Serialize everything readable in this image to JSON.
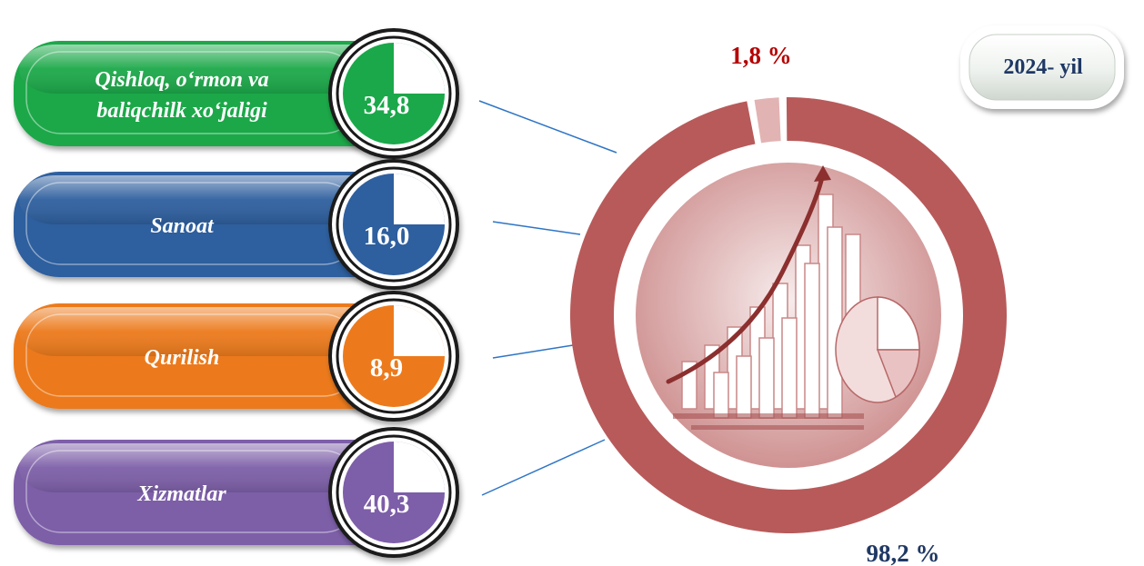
{
  "year_badge": "2024- yil",
  "colors": {
    "ring_main": "#b85a5a",
    "ring_small": "#e2b3b3",
    "small_label": "#b50000",
    "large_label": "#1f3864",
    "connector": "#2e75c6"
  },
  "chart_data": [
    {
      "type": "pie",
      "categories": [
        "Qishloq, o‘rmon va baliqchilk xo‘jaligi",
        "Sanoat",
        "Qurilish",
        "Xizmatlar"
      ],
      "values": [
        34.8,
        16.0,
        8.9,
        40.3
      ],
      "value_labels": [
        "34,8",
        "16,0",
        "8,9",
        "40,3"
      ],
      "colors": [
        "#1aa84a",
        "#2e5f9e",
        "#ec7a1c",
        "#7d5ea8"
      ]
    },
    {
      "type": "pie",
      "values": [
        98.2,
        1.8
      ],
      "value_labels": [
        "98,2 %",
        "1,8 %"
      ]
    }
  ]
}
